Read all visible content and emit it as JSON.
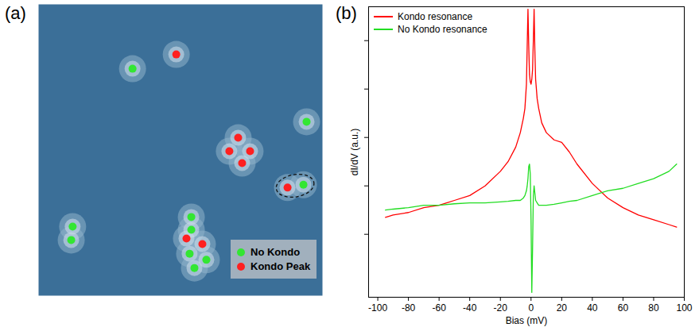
{
  "chart_data": [
    {
      "type": "scatter",
      "title": "(a)",
      "xlim": [
        0,
        100
      ],
      "ylim": [
        0,
        100
      ],
      "tick_labels": false,
      "legend": "lower right",
      "marker": "circle",
      "series": [
        {
          "name": "No Kondo",
          "color": "#33e633",
          "x": [
            33.1,
            94.4,
            93.3,
            12.0,
            11.5,
            53.8,
            53.8,
            59.1,
            53.2,
            54.9
          ],
          "values": [
            77.9,
            59.7,
            38.1,
            23.7,
            19.1,
            27.0,
            22.6,
            12.3,
            14.4,
            9.5
          ]
        },
        {
          "name": "Kondo Peak",
          "color": "#ff2020",
          "x": [
            48.5,
            70.3,
            67.2,
            74.5,
            71.7,
            87.7,
            52.1,
            57.7
          ],
          "values": [
            82.8,
            54.2,
            49.6,
            49.6,
            45.5,
            37.1,
            19.6,
            17.7
          ]
        }
      ]
    },
    {
      "type": "line",
      "title": "(b)",
      "xlabel": "Bias (mV)",
      "ylabel": "dI/dV (a.u.)",
      "xlim": [
        -106,
        100
      ],
      "xticks": [
        -100,
        -80,
        -60,
        -40,
        -20,
        0,
        20,
        40,
        60,
        80,
        100
      ],
      "ylim": [
        0,
        6
      ],
      "yticks": [
        1.3,
        2.3,
        3.3,
        4.3,
        5.3
      ],
      "tick_labels": "x",
      "legend": "upper left",
      "x": [
        -95,
        -90,
        -80,
        -70,
        -60,
        -50,
        -40,
        -30,
        -20,
        -15,
        -10,
        -7,
        -5,
        -4,
        -3,
        -2.5,
        -2,
        -1.5,
        -1,
        -0.5,
        0,
        0.5,
        1,
        1.5,
        2,
        2.5,
        3,
        4,
        5,
        7,
        10,
        15,
        20,
        25,
        30,
        40,
        50,
        60,
        70,
        80,
        90,
        95
      ],
      "series": [
        {
          "name": "Kondo resonance",
          "color": "#ff0000",
          "values": [
            1.65,
            1.7,
            1.75,
            1.85,
            1.9,
            2.0,
            2.1,
            2.3,
            2.6,
            2.8,
            3.1,
            3.4,
            3.7,
            3.9,
            4.4,
            5.2,
            5.95,
            5.2,
            4.6,
            4.45,
            4.4,
            4.5,
            4.7,
            5.3,
            5.95,
            5.1,
            4.5,
            4.1,
            3.9,
            3.6,
            3.4,
            3.25,
            3.2,
            3.0,
            2.75,
            2.35,
            2.05,
            1.85,
            1.7,
            1.6,
            1.5,
            1.45
          ]
        },
        {
          "name": "No Kondo resonance",
          "color": "#22dd22",
          "values": [
            1.8,
            1.82,
            1.85,
            1.9,
            1.9,
            1.93,
            1.95,
            1.95,
            1.97,
            1.98,
            2.0,
            2.0,
            2.05,
            2.1,
            2.2,
            2.3,
            2.45,
            2.7,
            2.75,
            2.55,
            1.6,
            0.1,
            1.0,
            2.1,
            2.3,
            2.15,
            2.0,
            1.95,
            1.9,
            1.9,
            1.9,
            1.92,
            1.95,
            1.98,
            2.0,
            2.1,
            2.2,
            2.25,
            2.35,
            2.45,
            2.6,
            2.75
          ]
        }
      ]
    }
  ]
}
